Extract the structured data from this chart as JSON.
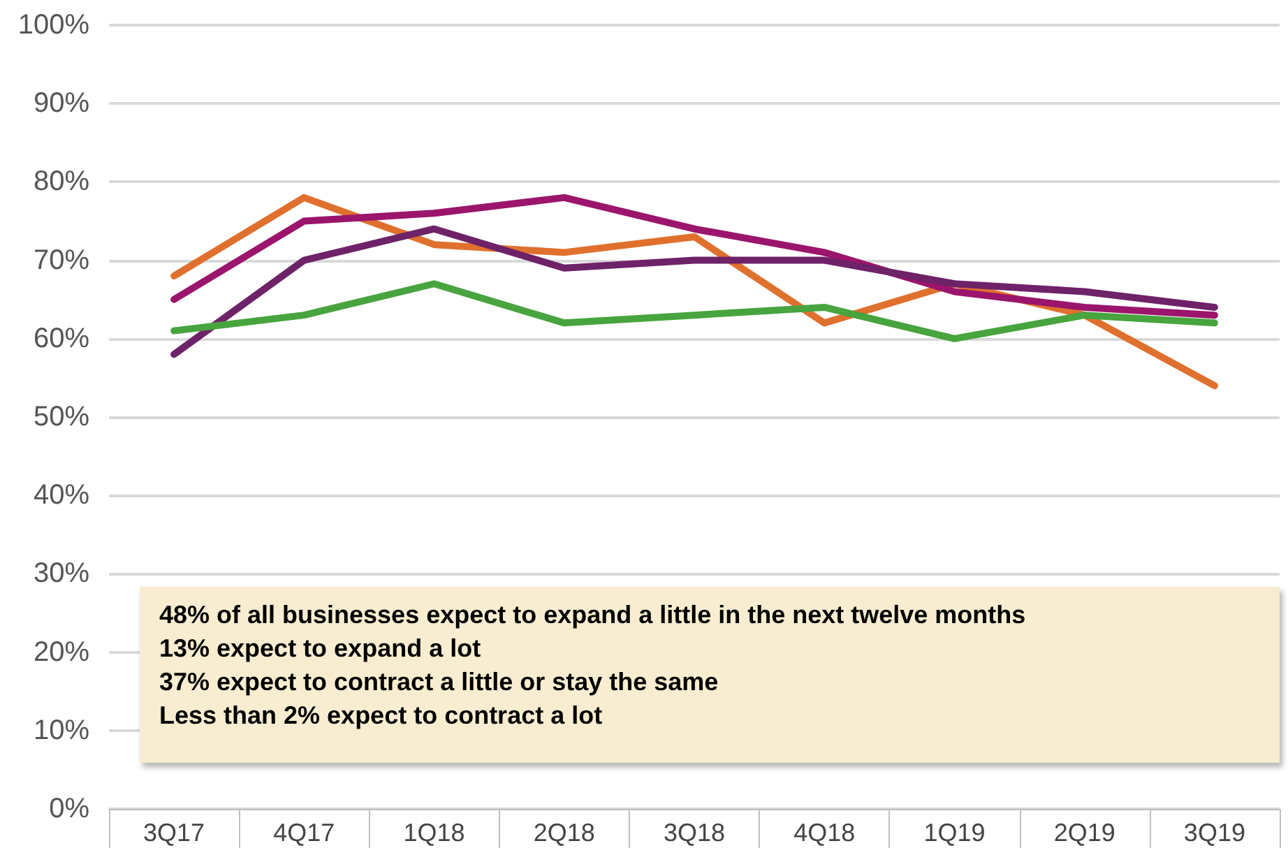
{
  "chart_data": {
    "type": "line",
    "categories": [
      "3Q17",
      "4Q17",
      "1Q18",
      "2Q18",
      "3Q18",
      "4Q18",
      "1Q19",
      "2Q19",
      "3Q19"
    ],
    "series": [
      {
        "color": "#e0702e",
        "values": [
          68,
          78,
          72,
          71,
          73,
          62,
          67,
          63,
          54
        ]
      },
      {
        "color": "#9b156c",
        "values": [
          65,
          75,
          76,
          78,
          74,
          71,
          66,
          64,
          63
        ]
      },
      {
        "color": "#6e2268",
        "values": [
          58,
          70,
          74,
          69,
          70,
          70,
          67,
          66,
          64
        ]
      },
      {
        "color": "#48a43e",
        "values": [
          61,
          63,
          67,
          62,
          63,
          64,
          60,
          63,
          62
        ]
      }
    ],
    "ylim": [
      0,
      100
    ],
    "yticks": [
      {
        "value": 0,
        "label": "0%"
      },
      {
        "value": 10,
        "label": "10%"
      },
      {
        "value": 20,
        "label": "20%"
      },
      {
        "value": 30,
        "label": "30%"
      },
      {
        "value": 40,
        "label": "40%"
      },
      {
        "value": 50,
        "label": "50%"
      },
      {
        "value": 60,
        "label": "60%"
      },
      {
        "value": 70,
        "label": "70%"
      },
      {
        "value": 80,
        "label": "80%"
      },
      {
        "value": 90,
        "label": "90%"
      },
      {
        "value": 100,
        "label": "100%"
      }
    ],
    "grid": "y",
    "marker": "none",
    "line_style": "solid",
    "annotations": [
      "48% of all businesses expect to expand a little in the next twelve months",
      "13% expect to expand a lot",
      "37% expect to contract a little or stay the same",
      "Less than 2% expect to contract a lot"
    ]
  }
}
